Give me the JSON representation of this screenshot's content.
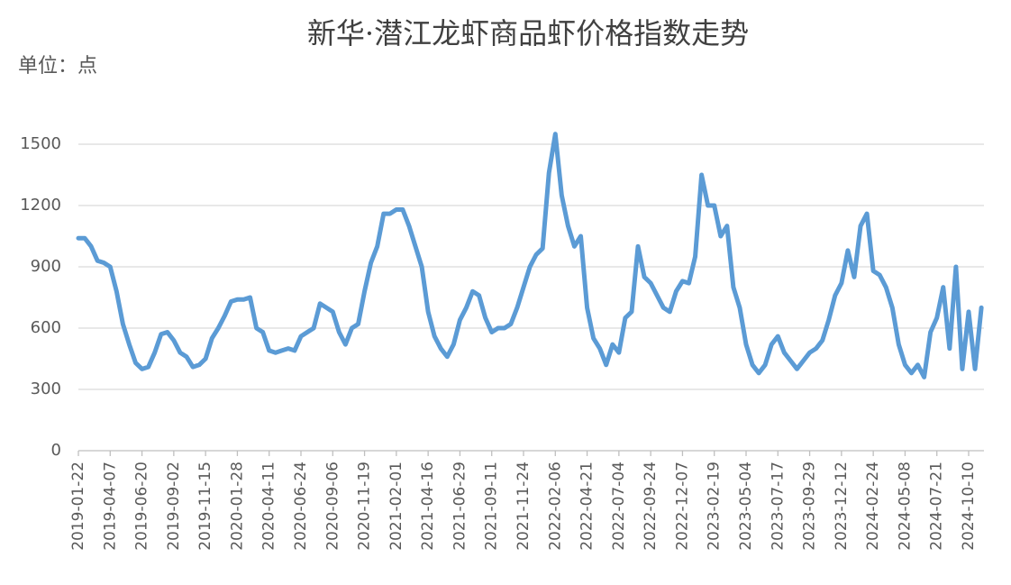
{
  "chart_data": {
    "type": "line",
    "title": "新华·潜江龙虾商品虾价格指数走势",
    "unit_label": "单位：点",
    "categories": [
      "2019-01-22",
      null,
      null,
      null,
      null,
      "2019-04-07",
      null,
      null,
      null,
      null,
      "2019-06-20",
      null,
      null,
      null,
      null,
      "2019-09-02",
      null,
      null,
      null,
      null,
      "2019-11-15",
      null,
      null,
      null,
      null,
      "2020-01-28",
      null,
      null,
      null,
      null,
      "2020-04-11",
      null,
      null,
      null,
      null,
      "2020-06-24",
      null,
      null,
      null,
      null,
      "2020-09-06",
      null,
      null,
      null,
      null,
      "2020-11-19",
      null,
      null,
      null,
      null,
      "2021-02-01",
      null,
      null,
      null,
      null,
      "2021-04-16",
      null,
      null,
      null,
      null,
      "2021-06-29",
      null,
      null,
      null,
      null,
      "2021-09-11",
      null,
      null,
      null,
      null,
      "2021-11-24",
      null,
      null,
      null,
      null,
      "2022-02-06",
      null,
      null,
      null,
      null,
      "2022-04-21",
      null,
      null,
      null,
      null,
      "2022-07-04",
      null,
      null,
      null,
      null,
      "2022-09-24",
      null,
      null,
      null,
      null,
      "2022-12-07",
      null,
      null,
      null,
      null,
      "2023-02-19",
      null,
      null,
      null,
      null,
      "2023-05-04",
      null,
      null,
      null,
      null,
      "2023-07-17",
      null,
      null,
      null,
      null,
      "2023-09-29",
      null,
      null,
      null,
      null,
      "2023-12-12",
      null,
      null,
      null,
      null,
      "2024-02-24",
      null,
      null,
      null,
      null,
      "2024-05-08",
      null,
      null,
      null,
      null,
      "2024-07-21",
      null,
      null,
      null,
      null,
      "2024-10-10",
      null,
      null
    ],
    "series": [
      {
        "name": "价格指数",
        "color": "#5b9bd5",
        "values": [
          1040,
          1040,
          1000,
          930,
          920,
          900,
          780,
          620,
          520,
          430,
          400,
          410,
          480,
          570,
          580,
          540,
          480,
          460,
          410,
          420,
          450,
          550,
          600,
          660,
          730,
          740,
          740,
          750,
          600,
          580,
          490,
          480,
          490,
          500,
          490,
          560,
          580,
          600,
          720,
          700,
          680,
          580,
          520,
          600,
          620,
          780,
          920,
          1000,
          1160,
          1160,
          1180,
          1180,
          1100,
          1000,
          900,
          680,
          560,
          500,
          460,
          520,
          640,
          700,
          780,
          760,
          650,
          580,
          600,
          600,
          620,
          700,
          800,
          900,
          960,
          990,
          1360,
          1550,
          1250,
          1100,
          1000,
          1050,
          700,
          550,
          500,
          420,
          520,
          480,
          650,
          680,
          1000,
          850,
          820,
          760,
          700,
          680,
          780,
          830,
          820,
          950,
          1350,
          1200,
          1200,
          1050,
          1100,
          800,
          700,
          520,
          420,
          380,
          420,
          520,
          560,
          480,
          440,
          400,
          440,
          480,
          500,
          540,
          640,
          760,
          820,
          980,
          850,
          1100,
          1160,
          880,
          860,
          800,
          700,
          520,
          420,
          380,
          420,
          360,
          580,
          650,
          800,
          500,
          900,
          400,
          680,
          400,
          700
        ]
      }
    ],
    "ylim": [
      0,
      1650
    ],
    "yticks": [
      0,
      300,
      600,
      900,
      1200,
      1500
    ],
    "grid": true
  }
}
